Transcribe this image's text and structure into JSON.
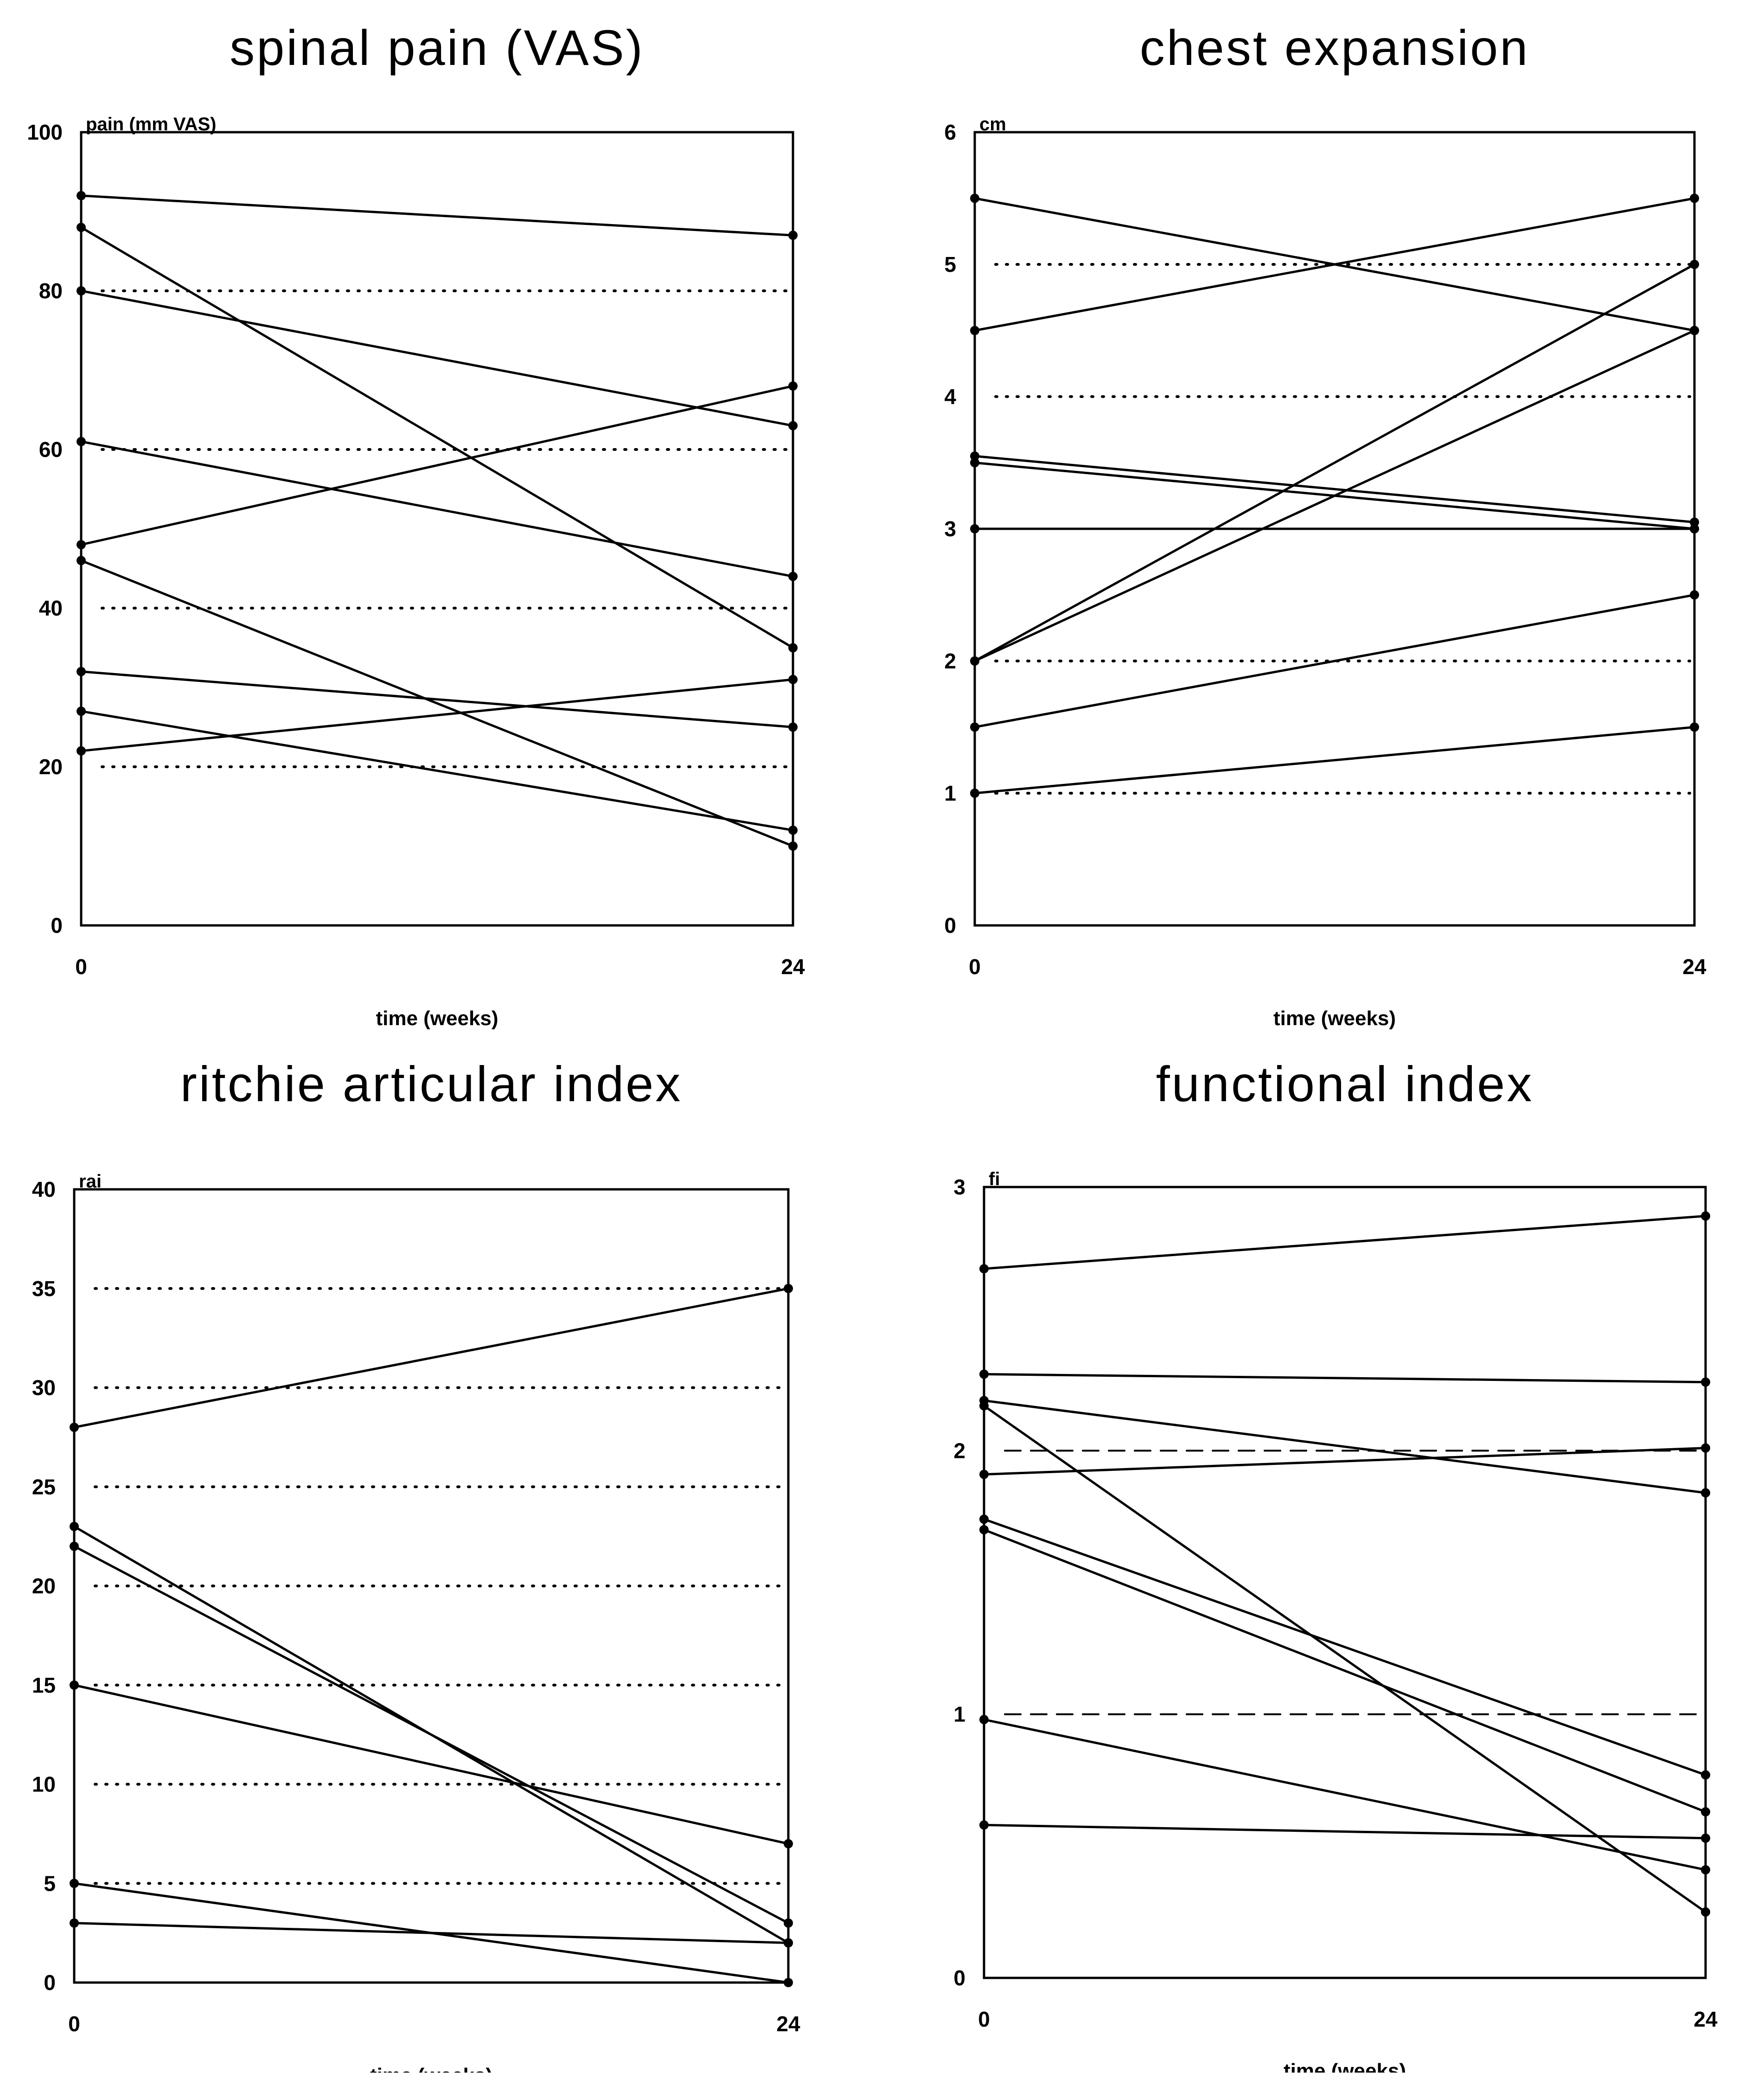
{
  "chart_data": [
    {
      "type": "line",
      "title": "spinal pain (VAS)",
      "ylabel": "pain (mm VAS)",
      "xlabel": "time (weeks)",
      "x": [
        0,
        24
      ],
      "x_ticks": [
        "0",
        "24"
      ],
      "ylim": [
        0,
        100
      ],
      "y_ticks": [
        "0",
        "20",
        "40",
        "60",
        "80",
        "100"
      ],
      "y_tick_values": [
        0,
        20,
        40,
        60,
        80,
        100
      ],
      "reference_lines": [
        20,
        40,
        60,
        80
      ],
      "reference_style": "dotted",
      "series": [
        {
          "values": [
            92,
            87
          ]
        },
        {
          "values": [
            88,
            35
          ]
        },
        {
          "values": [
            80,
            63
          ]
        },
        {
          "values": [
            61,
            44
          ]
        },
        {
          "values": [
            48,
            68
          ]
        },
        {
          "values": [
            46,
            10
          ]
        },
        {
          "values": [
            32,
            25
          ]
        },
        {
          "values": [
            27,
            12
          ]
        },
        {
          "values": [
            22,
            31
          ]
        }
      ]
    },
    {
      "type": "line",
      "title": "chest expansion",
      "ylabel": "cm",
      "xlabel": "time (weeks)",
      "x": [
        0,
        24
      ],
      "x_ticks": [
        "0",
        "24"
      ],
      "ylim": [
        0,
        6
      ],
      "y_ticks": [
        "0",
        "1",
        "2",
        "3",
        "4",
        "5",
        "6"
      ],
      "y_tick_values": [
        0,
        1,
        2,
        3,
        4,
        5,
        6
      ],
      "reference_lines": [
        1,
        2,
        4,
        5
      ],
      "reference_style": "dotted",
      "series": [
        {
          "values": [
            5.5,
            4.5
          ]
        },
        {
          "values": [
            4.5,
            5.5
          ]
        },
        {
          "values": [
            3.55,
            3.05
          ]
        },
        {
          "values": [
            3.5,
            3.0
          ]
        },
        {
          "values": [
            3.0,
            3.0
          ]
        },
        {
          "values": [
            2.0,
            5.0
          ]
        },
        {
          "values": [
            2.0,
            4.5
          ]
        },
        {
          "values": [
            1.5,
            2.5
          ]
        },
        {
          "values": [
            1.0,
            1.5
          ]
        }
      ]
    },
    {
      "type": "line",
      "title": "ritchie articular index",
      "ylabel": "rai",
      "xlabel": "time (weeks)",
      "x": [
        0,
        24
      ],
      "x_ticks": [
        "0",
        "24"
      ],
      "ylim": [
        0,
        40
      ],
      "y_ticks": [
        "0",
        "5",
        "10",
        "15",
        "20",
        "25",
        "30",
        "35",
        "40"
      ],
      "y_tick_values": [
        0,
        5,
        10,
        15,
        20,
        25,
        30,
        35,
        40
      ],
      "reference_lines": [
        5,
        10,
        15,
        20,
        25,
        30,
        35
      ],
      "reference_style": "dotted",
      "series": [
        {
          "values": [
            28,
            35
          ]
        },
        {
          "values": [
            23,
            2
          ]
        },
        {
          "values": [
            22,
            3
          ]
        },
        {
          "values": [
            15,
            7
          ]
        },
        {
          "values": [
            5,
            0
          ]
        },
        {
          "values": [
            3,
            2
          ]
        }
      ]
    },
    {
      "type": "line",
      "title": "functional index",
      "ylabel": "fi",
      "xlabel": "time (weeks)",
      "x": [
        0,
        24
      ],
      "x_ticks": [
        "0",
        "24"
      ],
      "ylim": [
        0,
        3
      ],
      "y_ticks": [
        "0",
        "1",
        "2",
        "3"
      ],
      "y_tick_values": [
        0,
        1,
        2,
        3
      ],
      "reference_lines": [
        1,
        2
      ],
      "reference_style": "dashed",
      "series": [
        {
          "values": [
            2.69,
            2.89
          ]
        },
        {
          "values": [
            2.29,
            2.26
          ]
        },
        {
          "values": [
            2.19,
            1.84
          ]
        },
        {
          "values": [
            2.17,
            0.25
          ]
        },
        {
          "values": [
            1.91,
            2.01
          ]
        },
        {
          "values": [
            1.74,
            0.77
          ]
        },
        {
          "values": [
            1.7,
            0.63
          ]
        },
        {
          "values": [
            0.98,
            0.41
          ]
        },
        {
          "values": [
            0.58,
            0.53
          ]
        }
      ]
    }
  ]
}
